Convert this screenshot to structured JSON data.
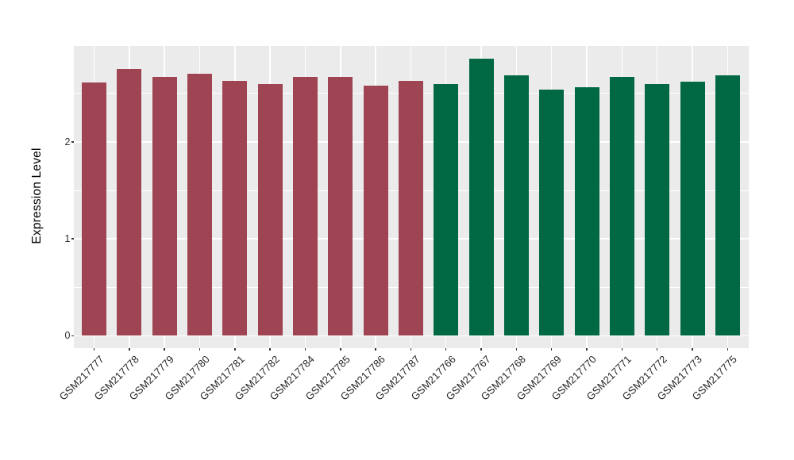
{
  "chart_data": {
    "type": "bar",
    "title": "",
    "xlabel": "",
    "ylabel": "Expression Level",
    "categories": [
      "GSM217777",
      "GSM217778",
      "GSM217779",
      "GSM217780",
      "GSM217781",
      "GSM217782",
      "GSM217784",
      "GSM217785",
      "GSM217786",
      "GSM217787",
      "GSM217766",
      "GSM217767",
      "GSM217768",
      "GSM217769",
      "GSM217770",
      "GSM217771",
      "GSM217772",
      "GSM217773",
      "GSM217775"
    ],
    "values": [
      2.61,
      2.75,
      2.67,
      2.7,
      2.63,
      2.6,
      2.67,
      2.67,
      2.58,
      2.63,
      2.6,
      2.86,
      2.69,
      2.54,
      2.56,
      2.67,
      2.6,
      2.62,
      2.69
    ],
    "bar_colors": [
      "#9E4452",
      "#9E4452",
      "#9E4452",
      "#9E4452",
      "#9E4452",
      "#9E4452",
      "#9E4452",
      "#9E4452",
      "#9E4452",
      "#9E4452",
      "#006944",
      "#006944",
      "#006944",
      "#006944",
      "#006944",
      "#006944",
      "#006944",
      "#006944",
      "#006944"
    ],
    "colors": {
      "group_red": "#9E4452",
      "group_green": "#006944",
      "panel_background": "#EBEBEB",
      "gridline": "#FFFFFF",
      "tick_text": "#2e2e2e"
    },
    "yticks": [
      "0",
      "1",
      "2"
    ],
    "ytick_values": [
      0,
      1,
      2
    ],
    "minor_gridlines": [
      0.5,
      1.5,
      2.5
    ],
    "major_gridlines": [
      0,
      1,
      2,
      3
    ],
    "ylim": [
      0,
      3.0
    ],
    "grid": true,
    "legend_position": "none"
  }
}
